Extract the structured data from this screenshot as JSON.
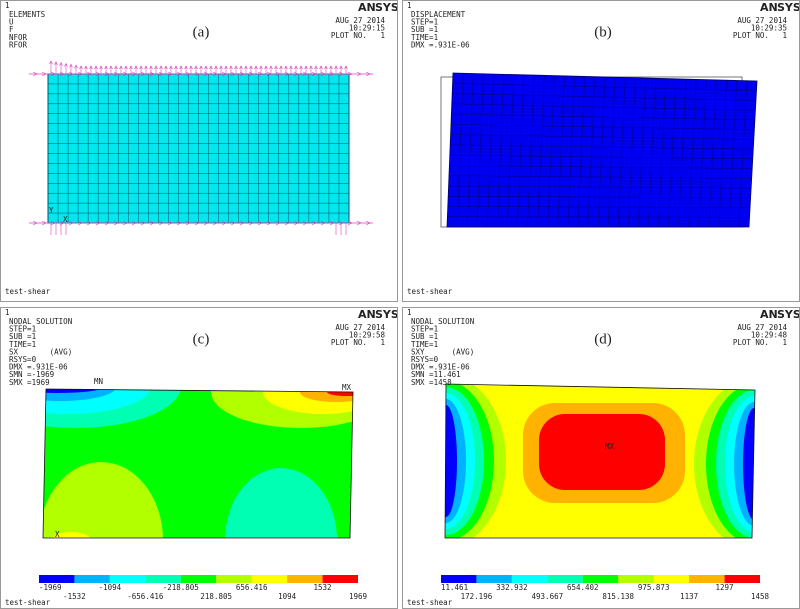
{
  "logo": {
    "an": "AN",
    "sys": "SYS"
  },
  "panels": [
    {
      "label": "(a)",
      "number": "1",
      "lines": [
        "ELEMENTS",
        "U",
        "F",
        "NFOR",
        "RFOR"
      ],
      "date": "AUG 27 2014",
      "time": "10:29:15",
      "plot": "PLOT NO.   1",
      "footer": "test-shear",
      "triad": [
        "Y",
        "X"
      ]
    },
    {
      "label": "(b)",
      "number": "1",
      "lines": [
        "DISPLACEMENT",
        "STEP=1",
        "SUB =1",
        "TIME=1",
        "DMX =.931E-06"
      ],
      "date": "AUG 27 2014",
      "time": "10:29:35",
      "plot": "PLOT NO.   1",
      "footer": "test-shear"
    },
    {
      "label": "(c)",
      "number": "1",
      "lines": [
        "NODAL SOLUTION",
        "STEP=1",
        "SUB =1",
        "TIME=1",
        "SX       (AVG)",
        "RSYS=0",
        "DMX =.931E-06",
        "SMN =-1969",
        "SMX =1969"
      ],
      "date": "AUG 27 2014",
      "time": "10:29:58",
      "plot": "PLOT NO.   1",
      "footer": "test-shear",
      "triad": [
        "X"
      ],
      "markers": [
        "MN",
        "MX"
      ],
      "legend": [
        -1969,
        -1532,
        -1094,
        -656.416,
        -218.805,
        218.805,
        656.416,
        1094,
        1532,
        1969
      ]
    },
    {
      "label": "(d)",
      "number": "1",
      "lines": [
        "NODAL SOLUTION",
        "STEP=1",
        "SUB =1",
        "TIME=1",
        "SXY      (AVG)",
        "RSYS=0",
        "DMX =.931E-06",
        "SMN =11.461",
        "SMX =1458"
      ],
      "date": "AUG 27 2014",
      "time": "10:29:48",
      "plot": "PLOT NO.   1",
      "footer": "test-shear",
      "markers": [
        "MX"
      ],
      "legend": [
        11.461,
        172.196,
        332.932,
        493.667,
        654.402,
        815.138,
        975.873,
        1137,
        1297,
        1458
      ]
    }
  ]
}
